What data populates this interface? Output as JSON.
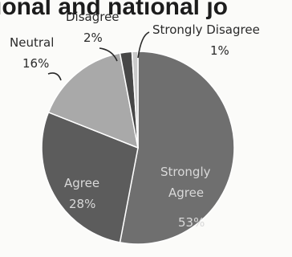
{
  "chart_data": {
    "type": "pie",
    "title": "ional and national jo",
    "slices": [
      {
        "label": "Strongly Agree",
        "value": 53,
        "value_label": "53%",
        "color": "#6f6f6f"
      },
      {
        "label": "Agree",
        "value": 28,
        "value_label": "28%",
        "color": "#5c5c5c"
      },
      {
        "label": "Neutral",
        "value": 16,
        "value_label": "16%",
        "color": "#a9a9a9"
      },
      {
        "label": "Disagree",
        "value": 2,
        "value_label": "2%",
        "color": "#474747"
      },
      {
        "label": "Strongly Disagree",
        "value": 1,
        "value_label": "1%",
        "color": "#c9c9c9"
      }
    ],
    "legend": "none"
  }
}
